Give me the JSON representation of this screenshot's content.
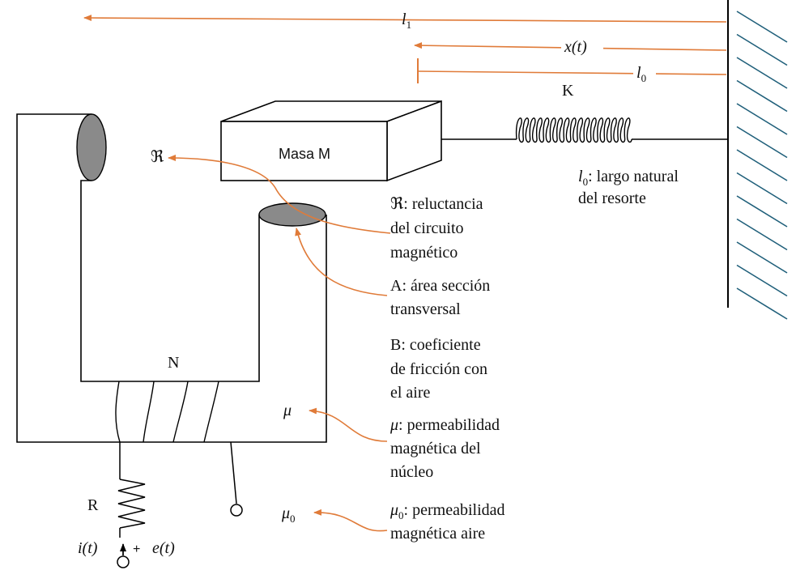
{
  "colors": {
    "line": "#000000",
    "arrow": "#e07b39",
    "hatch": "#1f5f7a",
    "pole_fill": "#8a8a8a",
    "text": "#111111"
  },
  "dimensions": {
    "l1": "l",
    "l1_sub": "1",
    "x": "x(t)",
    "l0": "l",
    "l0_sub": "0"
  },
  "spring": {
    "label": "K"
  },
  "mass": {
    "label": "Masa M"
  },
  "core": {
    "turns_label": "N"
  },
  "circuit": {
    "resistor_label": "R",
    "current_label": "i(t)",
    "plus_label": "+",
    "source_label": "e(t)"
  },
  "symbols": {
    "reluctance": "ℜ",
    "mu": "μ",
    "mu0": "μ",
    "mu0_sub": "0"
  },
  "annotations": {
    "l0_note_symbol": "l",
    "l0_note_sub": "0",
    "l0_note_line1": ": largo natural",
    "l0_note_line2": "del resorte",
    "reluctance_line1": "ℜ: reluctancia",
    "reluctance_line2": "del circuito",
    "reluctance_line3": "magnético",
    "area_line1": "A: área sección",
    "area_line2": "transversal",
    "friction_line1": "B: coeficiente",
    "friction_line2": "de fricción con",
    "friction_line3": "el aire",
    "mu_symbol": "μ",
    "mu_line1": ": permeabilidad",
    "mu_line2": "magnética del",
    "mu_line3": "núcleo",
    "mu0_symbol": "μ",
    "mu0_sub": "0",
    "mu0_line1": ": permeabilidad",
    "mu0_line2": "magnética aire"
  }
}
